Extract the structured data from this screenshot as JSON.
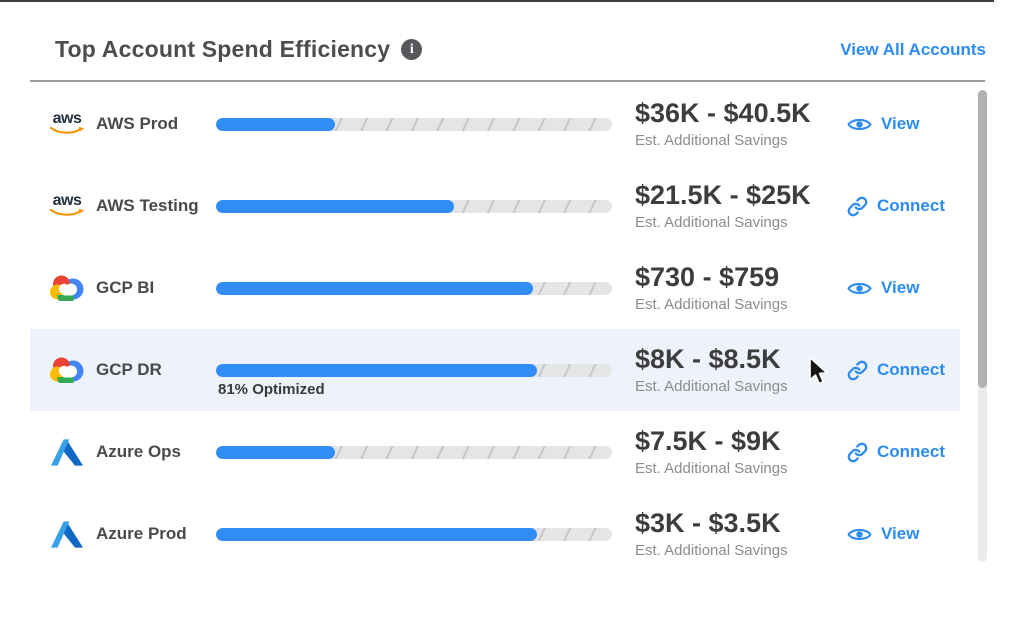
{
  "header": {
    "title": "Top Account Spend Efficiency",
    "info_glyph": "i",
    "info_icon": "info-icon",
    "view_all_label": "View All Accounts"
  },
  "labels": {
    "savings_caption": "Est. Additional Savings",
    "aws_logo_text": "aws"
  },
  "colors": {
    "accent_blue": "#2d8cf0",
    "bar_fill": "#2f8df5",
    "bar_track": "#e5e5e5",
    "row_highlight": "#eef2fa",
    "title_text": "#4d4d4d",
    "amount_text": "#3d3d3d",
    "caption_text": "#8c8c8c",
    "aws_orange": "#f59400",
    "gcp_colors": [
      "#EA4335",
      "#FBBC05",
      "#34A853",
      "#4285F4"
    ],
    "azure_blues": [
      "#36a0e8",
      "#1168c4"
    ]
  },
  "rows": [
    {
      "provider": "aws",
      "provider_icon": "aws-logo",
      "name": "AWS Prod",
      "optimized_percent": 30,
      "savings_range": "$36K - $40.5K",
      "action": {
        "label": "View",
        "icon": "eye-icon",
        "type": "view"
      },
      "highlighted": false
    },
    {
      "provider": "aws",
      "provider_icon": "aws-logo",
      "name": "AWS Testing",
      "optimized_percent": 60,
      "savings_range": "$21.5K - $25K",
      "action": {
        "label": "Connect",
        "icon": "link-icon",
        "type": "connect"
      },
      "highlighted": false
    },
    {
      "provider": "gcp",
      "provider_icon": "gcp-logo",
      "name": "GCP BI",
      "optimized_percent": 80,
      "savings_range": "$730 - $759",
      "action": {
        "label": "View",
        "icon": "eye-icon",
        "type": "view"
      },
      "highlighted": false
    },
    {
      "provider": "gcp",
      "provider_icon": "gcp-logo",
      "name": "GCP DR",
      "optimized_percent": 81,
      "savings_range": "$8K - $8.5K",
      "optimized_label": "81% Optimized",
      "action": {
        "label": "Connect",
        "icon": "link-icon",
        "type": "connect"
      },
      "highlighted": true
    },
    {
      "provider": "azure",
      "provider_icon": "azure-logo",
      "name": "Azure Ops",
      "optimized_percent": 30,
      "savings_range": "$7.5K - $9K",
      "action": {
        "label": "Connect",
        "icon": "link-icon",
        "type": "connect"
      },
      "highlighted": false
    },
    {
      "provider": "azure",
      "provider_icon": "azure-logo",
      "name": "Azure Prod",
      "optimized_percent": 81,
      "savings_range": "$3K - $3.5K",
      "action": {
        "label": "View",
        "icon": "eye-icon",
        "type": "view"
      },
      "highlighted": false
    }
  ]
}
